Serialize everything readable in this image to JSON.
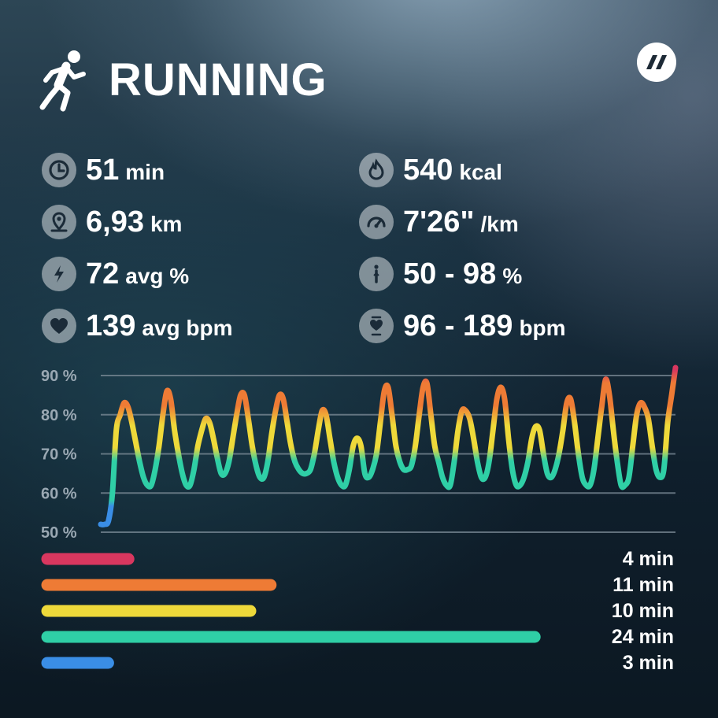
{
  "header": {
    "title": "RUNNING",
    "icon": "running-icon",
    "logo": "app-logo"
  },
  "stats": [
    {
      "icon": "clock-icon",
      "value": "51",
      "unit": "min"
    },
    {
      "icon": "flame-icon",
      "value": "540",
      "unit": "kcal"
    },
    {
      "icon": "location-pin-icon",
      "value": "6,93",
      "unit": "km"
    },
    {
      "icon": "speedometer-icon",
      "value": "7'26\"",
      "unit": "/km"
    },
    {
      "icon": "lightning-icon",
      "value": "72",
      "unit": "avg %"
    },
    {
      "icon": "range-icon",
      "value": "50 - 98",
      "unit": "%"
    },
    {
      "icon": "heart-icon",
      "value": "139",
      "unit": "avg bpm"
    },
    {
      "icon": "heart-range-icon",
      "value": "96 - 189",
      "unit": "bpm"
    }
  ],
  "colors": {
    "zone5": "#d9375f",
    "zone4": "#ee7b35",
    "zone3": "#eed93a",
    "zone2": "#2fcfa6",
    "zone1": "#3a8ee6",
    "grid": "#7d8c98",
    "axis_text": "#9aa8b3"
  },
  "chart_data": {
    "type": "line",
    "title": "",
    "xlabel": "",
    "ylabel": "",
    "yticks": [
      "90 %",
      "80 %",
      "70 %",
      "60 %",
      "50 %"
    ],
    "ylim": [
      50,
      90
    ],
    "grid": true,
    "series": [
      {
        "values": [
          52,
          52,
          53,
          60,
          76,
          80,
          83,
          82,
          78,
          73,
          68,
          64,
          62,
          62,
          66,
          72,
          80,
          86,
          84,
          76,
          70,
          65,
          62,
          62,
          66,
          72,
          76,
          79,
          78,
          74,
          69,
          65,
          65,
          68,
          74,
          80,
          85,
          85,
          79,
          72,
          67,
          64,
          64,
          68,
          75,
          81,
          85,
          84,
          78,
          72,
          68,
          66,
          65,
          65,
          66,
          70,
          76,
          81,
          80,
          74,
          68,
          64,
          62,
          62,
          66,
          72,
          74,
          72,
          65,
          64,
          66,
          70,
          78,
          86,
          87,
          80,
          72,
          68,
          66,
          66,
          67,
          72,
          80,
          87,
          88,
          80,
          72,
          68,
          64,
          62,
          62,
          68,
          76,
          81,
          81,
          79,
          74,
          68,
          64,
          64,
          68,
          76,
          84,
          87,
          84,
          74,
          66,
          62,
          62,
          64,
          68,
          74,
          77,
          76,
          70,
          65,
          64,
          66,
          70,
          76,
          83,
          84,
          78,
          70,
          64,
          62,
          62,
          66,
          74,
          82,
          89,
          85,
          76,
          68,
          62,
          62,
          64,
          72,
          80,
          83,
          82,
          79,
          72,
          66,
          64,
          66,
          78,
          85,
          92
        ]
      }
    ],
    "zones": [
      {
        "label": "4 min",
        "minutes": 4,
        "color": "#d9375f"
      },
      {
        "label": "11 min",
        "minutes": 11,
        "color": "#ee7b35"
      },
      {
        "label": "10 min",
        "minutes": 10,
        "color": "#eed93a"
      },
      {
        "label": "24 min",
        "minutes": 24,
        "color": "#2fcfa6"
      },
      {
        "label": "3 min",
        "minutes": 3,
        "color": "#3a8ee6"
      }
    ]
  }
}
